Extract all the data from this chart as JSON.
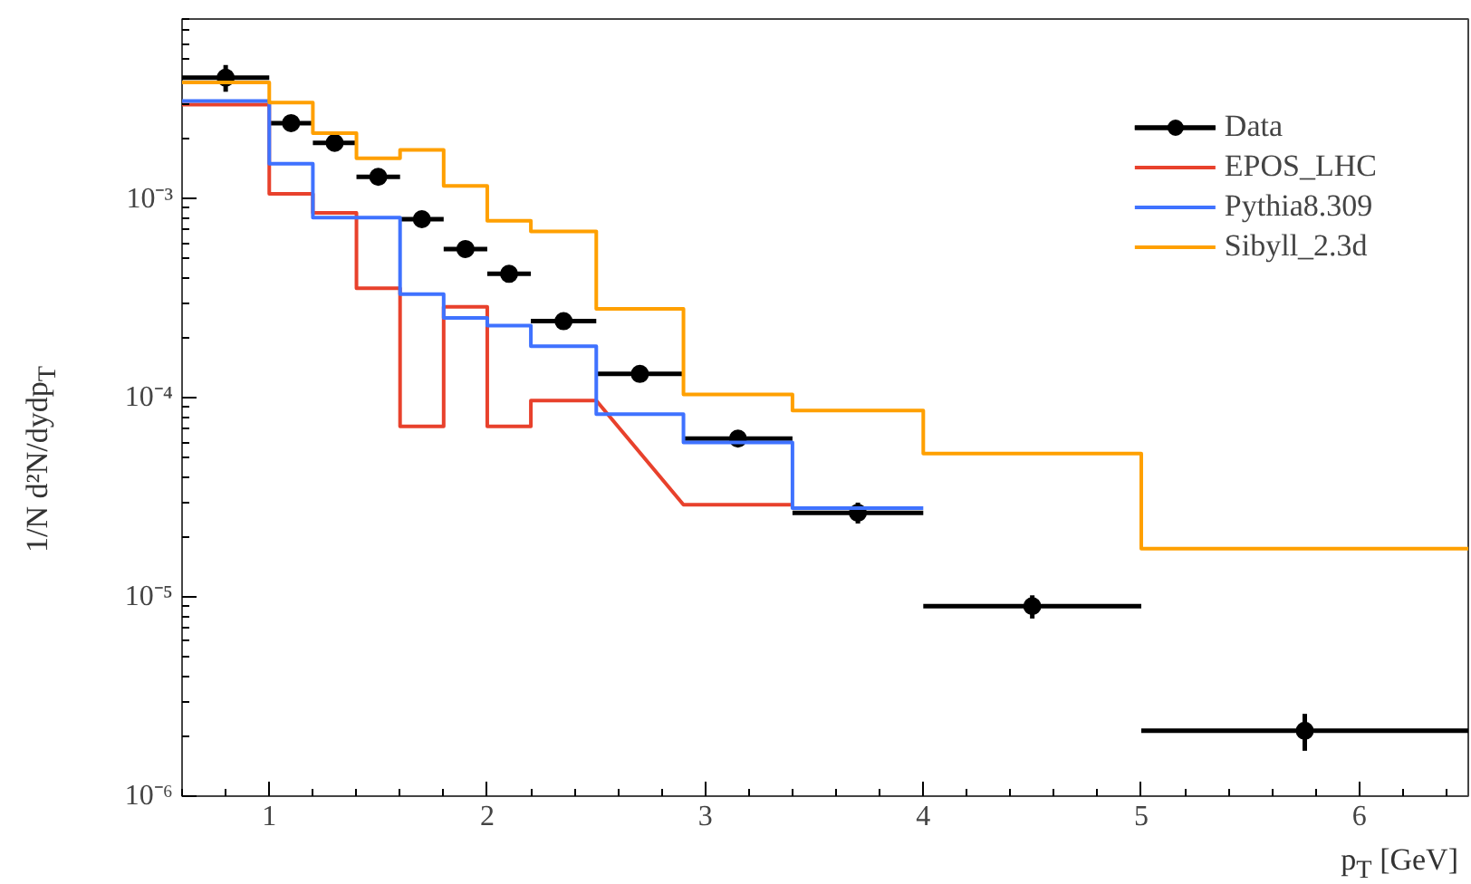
{
  "chart_data": {
    "type": "line",
    "xlabel": "p$_{T}$ [GeV]",
    "ylabel": "1/N d²N/dydp$_{T}$",
    "log": "y",
    "grid": false,
    "legend": "top right",
    "xlim": [
      0.6,
      6.5
    ],
    "xticks": [
      1,
      2,
      3,
      4,
      5,
      6
    ],
    "ylim": [
      1e-06,
      0.008
    ],
    "yticks": [
      {
        "value": 0.001,
        "label": "10⁻³"
      },
      {
        "value": 0.0001,
        "label": "10⁻⁴"
      },
      {
        "value": 1e-05,
        "label": "10⁻⁵"
      },
      {
        "value": 1e-06,
        "label": "10⁻⁶"
      }
    ],
    "series": [
      {
        "name": "Data",
        "type": "scatter",
        "color": "#000000",
        "marker": "circle",
        "x": [
          0.8,
          1.1,
          1.3,
          1.5,
          1.7,
          1.9,
          2.1,
          2.35,
          2.7,
          3.15,
          3.7,
          4.5,
          5.75
        ],
        "values": [
          0.00406,
          0.0024,
          0.00191,
          0.00129,
          0.00079,
          0.00056,
          0.00042,
          0.000243,
          0.000132,
          6.25e-05,
          2.65e-05,
          9e-06,
          2.13e-06
        ],
        "xerrors": [
          [
            0.6,
            1.0
          ],
          [
            1.0,
            1.2
          ],
          [
            1.2,
            1.4
          ],
          [
            1.4,
            1.6
          ],
          [
            1.6,
            1.8
          ],
          [
            1.8,
            2.0
          ],
          [
            2.0,
            2.2
          ],
          [
            2.2,
            2.5
          ],
          [
            2.5,
            2.9
          ],
          [
            2.9,
            3.4
          ],
          [
            3.4,
            4.0
          ],
          [
            4.0,
            5.0
          ],
          [
            5.0,
            6.5
          ]
        ],
        "errors": [
          [
            0.00345,
            0.0047
          ],
          null,
          null,
          null,
          null,
          null,
          null,
          null,
          null,
          null,
          [
            2.34e-05,
            2.98e-05
          ],
          [
            7.8e-06,
            1.02e-05
          ],
          [
            1.69e-06,
            2.59e-06
          ]
        ]
      },
      {
        "name": "EPOS_LHC",
        "color": "#e8412c",
        "x": [
          0.6,
          1.0,
          1.0,
          1.2,
          1.2,
          1.4,
          1.4,
          1.6,
          1.6,
          1.8,
          1.8,
          2.0,
          2.0,
          2.2,
          2.2,
          2.5,
          2.9,
          3.4
        ],
        "values": [
          0.00297,
          0.00297,
          0.00106,
          0.00106,
          0.00085,
          0.00085,
          0.000356,
          0.000356,
          7.2e-05,
          7.2e-05,
          0.000287,
          0.000287,
          7.2e-05,
          7.2e-05,
          9.7e-05,
          9.7e-05,
          2.91e-05,
          2.91e-05
        ]
      },
      {
        "name": "Pythia8.309",
        "color": "#3f72ff",
        "x": [
          0.6,
          1.0,
          1.0,
          1.2,
          1.2,
          1.6,
          1.6,
          1.8,
          1.8,
          2.0,
          2.0,
          2.2,
          2.2,
          2.5,
          2.5,
          2.9,
          2.9,
          3.4,
          3.4,
          4.0
        ],
        "values": [
          0.0031,
          0.0031,
          0.0015,
          0.0015,
          0.000804,
          0.000804,
          0.000332,
          0.000332,
          0.000252,
          0.000252,
          0.000231,
          0.000231,
          0.000182,
          0.000182,
          8.3e-05,
          8.3e-05,
          5.98e-05,
          5.98e-05,
          2.8e-05,
          2.8e-05
        ]
      },
      {
        "name": "Sibyll_2.3d",
        "color": "#ffa000",
        "x": [
          0.6,
          1.0,
          1.0,
          1.2,
          1.2,
          1.4,
          1.4,
          1.6,
          1.6,
          1.8,
          1.8,
          2.0,
          2.0,
          2.2,
          2.2,
          2.5,
          2.5,
          2.9,
          2.9,
          3.4,
          3.4,
          4.0,
          4.0,
          5.0,
          5.0,
          6.5
        ],
        "values": [
          0.00384,
          0.00384,
          0.00304,
          0.00304,
          0.00214,
          0.00214,
          0.0016,
          0.0016,
          0.00176,
          0.00176,
          0.00116,
          0.00116,
          0.000775,
          0.000775,
          0.000686,
          0.000686,
          0.00028,
          0.00028,
          0.000104,
          0.000104,
          8.65e-05,
          8.65e-05,
          5.25e-05,
          5.25e-05,
          1.75e-05,
          1.75e-05
        ]
      }
    ]
  }
}
